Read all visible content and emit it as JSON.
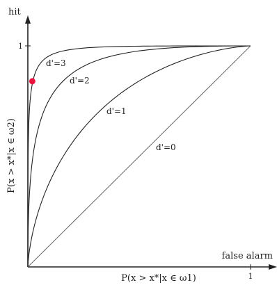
{
  "chart_data": {
    "type": "line",
    "title": "",
    "xlabel": "false alarm",
    "ylabel": "hit",
    "x_axis_formula": "P(x > x*|x ∈ ω1)",
    "y_axis_formula": "P(x > x*|x ∈ ω2)",
    "xlim": [
      0,
      1
    ],
    "ylim": [
      0,
      1
    ],
    "x_tick_labels": [
      "1"
    ],
    "y_tick_labels": [
      "1"
    ],
    "grid": false,
    "series": [
      {
        "name": "d'=3",
        "dprime": 3
      },
      {
        "name": "d'=2",
        "dprime": 2
      },
      {
        "name": "d'=1",
        "dprime": 1
      },
      {
        "name": "d'=0",
        "dprime": 0
      }
    ],
    "highlight_point": {
      "x": 0.02,
      "y": 0.84,
      "color": "#e8123c"
    },
    "colors": {
      "curves": "#222222",
      "axes": "#222222",
      "diagonal": "#555555"
    }
  }
}
